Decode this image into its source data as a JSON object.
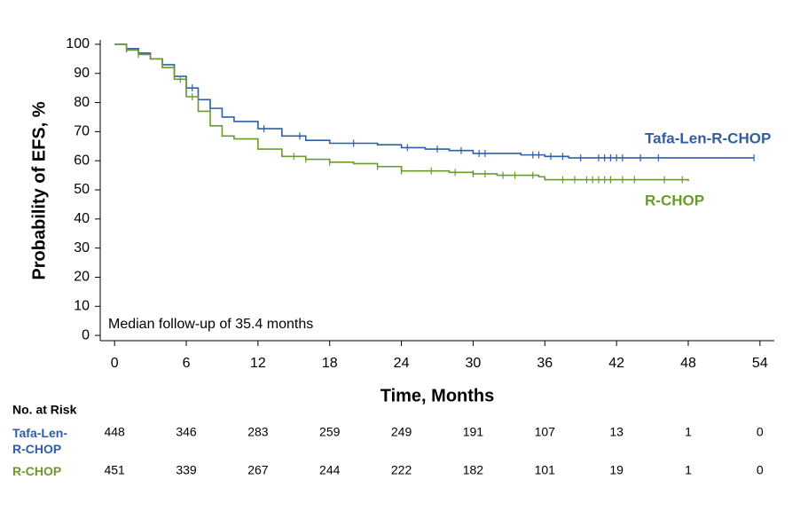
{
  "chart_data": {
    "type": "step",
    "xlabel": "Time, Months",
    "ylabel": "Probability of EFS, %",
    "annotation": "Median follow-up of 35.4 months",
    "risk_title": "No. at Risk",
    "xlim": [
      -1.2,
      55.2
    ],
    "ylim": [
      -1.8,
      101.5
    ],
    "xticks": [
      0,
      6,
      12,
      18,
      24,
      30,
      36,
      42,
      48,
      54
    ],
    "yticks": [
      0,
      10,
      20,
      30,
      40,
      50,
      60,
      70,
      80,
      90,
      100
    ],
    "series": [
      {
        "name": "Tafa-Len-R-CHOP",
        "color": "#2e5ea8",
        "x": [
          0,
          1,
          2,
          3,
          4,
          5,
          6,
          7,
          8,
          9,
          10,
          12,
          14,
          16,
          18,
          20,
          22,
          24,
          26,
          28,
          30,
          32,
          34,
          36,
          38,
          53.5
        ],
        "values": [
          100,
          98.5,
          97,
          95,
          93,
          89,
          85,
          81,
          78,
          75,
          73.5,
          71,
          68.5,
          67,
          66,
          66,
          65.5,
          64.5,
          64,
          63.5,
          62.5,
          62.5,
          62,
          61.5,
          61,
          61
        ],
        "censored": [
          1,
          4,
          6.5,
          8,
          12.5,
          15.5,
          20,
          24.5,
          27,
          29,
          30.5,
          31,
          35,
          35.5,
          36.5,
          37.5,
          39,
          40.5,
          41,
          41.5,
          42,
          42.5,
          44,
          45.5,
          53.5
        ],
        "at_risk": [
          448,
          346,
          283,
          259,
          249,
          191,
          107,
          13,
          1,
          0
        ]
      },
      {
        "name": "R-CHOP",
        "color": "#6a9a2e",
        "x": [
          0,
          1,
          2,
          3,
          4,
          5,
          6,
          7,
          8,
          9,
          10,
          12,
          14,
          16,
          18,
          20,
          22,
          24,
          26,
          28,
          30,
          32,
          34,
          35.5,
          36,
          48
        ],
        "values": [
          100,
          98,
          96.5,
          95,
          92,
          88,
          82,
          77,
          72,
          68.5,
          67.5,
          64,
          61.5,
          60.5,
          59.5,
          59,
          58,
          56.5,
          56.5,
          56,
          55.5,
          55,
          55,
          54.5,
          53.5,
          53
        ],
        "censored": [
          2,
          5.5,
          6.5,
          15,
          16,
          18,
          22,
          24,
          26.5,
          28.5,
          30,
          31,
          32.5,
          33.5,
          35,
          37.5,
          38.5,
          39.5,
          40,
          40.5,
          41,
          41.5,
          42.5,
          43.5,
          46,
          47.5
        ],
        "at_risk": [
          451,
          339,
          267,
          244,
          222,
          182,
          101,
          19,
          1,
          0
        ]
      }
    ]
  }
}
